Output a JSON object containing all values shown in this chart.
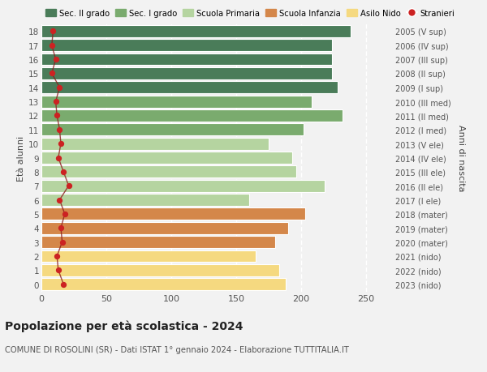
{
  "ages": [
    18,
    17,
    16,
    15,
    14,
    13,
    12,
    11,
    10,
    9,
    8,
    7,
    6,
    5,
    4,
    3,
    2,
    1,
    0
  ],
  "bar_values": [
    238,
    224,
    224,
    224,
    228,
    208,
    232,
    202,
    175,
    193,
    196,
    218,
    160,
    203,
    190,
    180,
    165,
    183,
    188
  ],
  "bar_colors": [
    "#4a7c59",
    "#4a7c59",
    "#4a7c59",
    "#4a7c59",
    "#4a7c59",
    "#7aab6e",
    "#7aab6e",
    "#7aab6e",
    "#b5d4a0",
    "#b5d4a0",
    "#b5d4a0",
    "#b5d4a0",
    "#b5d4a0",
    "#d4874a",
    "#d4874a",
    "#d4874a",
    "#f5d980",
    "#f5d980",
    "#f5d980"
  ],
  "stranieri_values": [
    9,
    8,
    11,
    8,
    14,
    11,
    12,
    14,
    15,
    13,
    17,
    21,
    14,
    18,
    15,
    16,
    12,
    13,
    17
  ],
  "right_labels": [
    "2005 (V sup)",
    "2006 (IV sup)",
    "2007 (III sup)",
    "2008 (II sup)",
    "2009 (I sup)",
    "2010 (III med)",
    "2011 (II med)",
    "2012 (I med)",
    "2013 (V ele)",
    "2014 (IV ele)",
    "2015 (III ele)",
    "2016 (II ele)",
    "2017 (I ele)",
    "2018 (mater)",
    "2019 (mater)",
    "2020 (mater)",
    "2021 (nido)",
    "2022 (nido)",
    "2023 (nido)"
  ],
  "ylabel_left": "Età alunni",
  "ylabel_right": "Anni di nascita",
  "title": "Popolazione per età scolastica - 2024",
  "subtitle": "COMUNE DI ROSOLINI (SR) - Dati ISTAT 1° gennaio 2024 - Elaborazione TUTTITALIA.IT",
  "xlim": [
    0,
    270
  ],
  "xticks": [
    0,
    50,
    100,
    150,
    200,
    250
  ],
  "legend_labels": [
    "Sec. II grado",
    "Sec. I grado",
    "Scuola Primaria",
    "Scuola Infanzia",
    "Asilo Nido",
    "Stranieri"
  ],
  "legend_colors": [
    "#4a7c59",
    "#7aab6e",
    "#b5d4a0",
    "#d4874a",
    "#f5d980",
    "#cc2222"
  ],
  "bg_color": "#f2f2f2",
  "bar_height": 0.85,
  "grid_color": "#ffffff",
  "tick_label_color": "#555555",
  "stranieri_line_color": "#8B1A1A",
  "stranieri_dot_color": "#cc2222"
}
